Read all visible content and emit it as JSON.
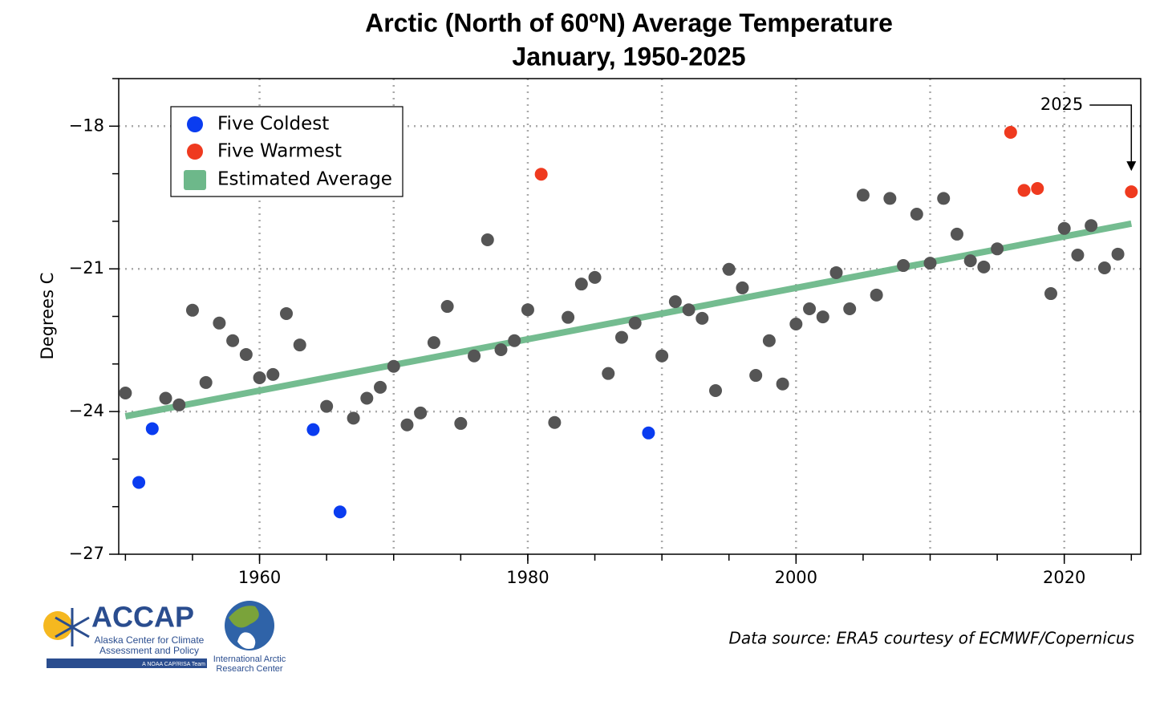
{
  "chart_data": {
    "type": "scatter",
    "title": "Arctic (North of 60ºN) Average Temperature",
    "subtitle": "January, 1950-2025",
    "ylabel": "Degrees C",
    "xlim": [
      1949.5,
      2025.7
    ],
    "ylim": [
      -27,
      -17
    ],
    "xticks": [
      1960,
      1980,
      2000,
      2020
    ],
    "xminor": [
      1950,
      1955,
      1960,
      1965,
      1970,
      1975,
      1980,
      1985,
      1990,
      1995,
      2000,
      2005,
      2010,
      2015,
      2020,
      2025
    ],
    "xgrid": [
      1960,
      1970,
      1980,
      1990,
      2000,
      2010,
      2020
    ],
    "yticks": [
      {
        "value": -18,
        "label": "−18"
      },
      {
        "value": -21,
        "label": "−21"
      },
      {
        "value": -24,
        "label": "−24"
      },
      {
        "value": -27,
        "label": "−27"
      }
    ],
    "yminor": [
      -26,
      -25,
      -23,
      -22,
      -20,
      -19,
      -17
    ],
    "ygrid": [
      -18,
      -21,
      -24
    ],
    "other_points": {
      "color": "#555555",
      "x": [
        1950,
        1953,
        1954,
        1955,
        1956,
        1957,
        1958,
        1959,
        1960,
        1961,
        1962,
        1963,
        1965,
        1967,
        1968,
        1969,
        1970,
        1971,
        1972,
        1973,
        1974,
        1975,
        1976,
        1977,
        1978,
        1979,
        1980,
        1982,
        1983,
        1984,
        1985,
        1986,
        1987,
        1988,
        1990,
        1991,
        1992,
        1993,
        1994,
        1995,
        1996,
        1997,
        1998,
        1999,
        2000,
        2001,
        2002,
        2003,
        2004,
        2005,
        2006,
        2007,
        2008,
        2009,
        2010,
        2011,
        2012,
        2013,
        2014,
        2015,
        2019,
        2020,
        2021,
        2022,
        2023,
        2024
      ],
      "y": [
        -23.61,
        -23.72,
        -23.86,
        -21.87,
        -23.39,
        -22.14,
        -22.51,
        -22.8,
        -23.29,
        -23.22,
        -21.94,
        -22.6,
        -23.89,
        -24.14,
        -23.72,
        -23.49,
        -23.05,
        -24.28,
        -24.03,
        -22.55,
        -21.79,
        -24.25,
        -22.83,
        -20.39,
        -22.7,
        -22.51,
        -21.86,
        -24.23,
        -22.02,
        -21.32,
        -21.18,
        -23.2,
        -22.44,
        -22.14,
        -22.83,
        -21.69,
        -21.86,
        -22.04,
        -23.56,
        -21.01,
        -21.4,
        -23.24,
        -22.51,
        -23.42,
        -22.16,
        -21.84,
        -22.01,
        -21.08,
        -21.84,
        -19.45,
        -21.55,
        -19.52,
        -20.93,
        -19.85,
        -20.88,
        -19.52,
        -20.27,
        -20.83,
        -20.96,
        -20.58,
        -21.52,
        -20.15,
        -20.71,
        -20.09,
        -20.98,
        -20.69
      ]
    },
    "series": [
      {
        "name": "Five Coldest",
        "color": "#0a3cf0",
        "x": [
          1951,
          1952,
          1964,
          1966,
          1989
        ],
        "y": [
          -25.49,
          -24.36,
          -24.38,
          -26.11,
          -24.45
        ]
      },
      {
        "name": "Five Warmest",
        "color": "#ef3a1f",
        "x": [
          1981,
          2016,
          2017,
          2018,
          2025
        ],
        "y": [
          -19.01,
          -18.13,
          -19.35,
          -19.31,
          -19.38
        ]
      }
    ],
    "trend": {
      "name": "Estimated Average",
      "color": "#6db88a",
      "x": [
        1950,
        2025
      ],
      "y": [
        -24.1,
        -20.05
      ]
    },
    "annotation": {
      "text": "2025",
      "x": 2025,
      "y": -19.38
    },
    "legend": "upper left"
  },
  "footer": {
    "source": "Data source: ERA5 courtesy of ECMWF/Copernicus",
    "logo1": {
      "name": "ACCAP",
      "line1": "Alaska Center for Climate",
      "line2": "Assessment and Policy",
      "tag": "A NOAA CAP/RISA Team"
    },
    "logo2": {
      "line1": "International Arctic",
      "line2": "Research Center"
    }
  }
}
